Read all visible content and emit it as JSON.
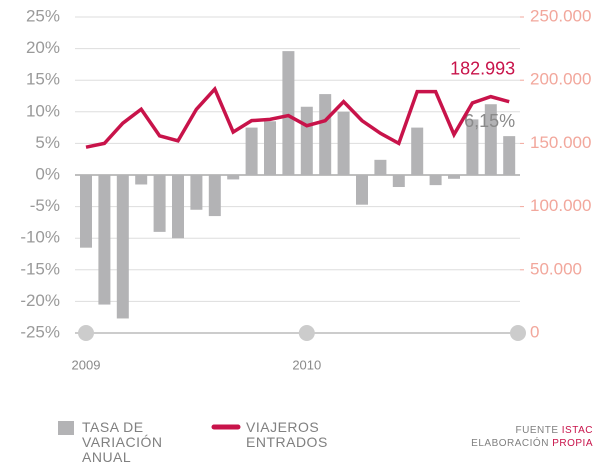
{
  "chart_data": {
    "type": "bar-line",
    "categories": [
      "2009",
      null,
      null,
      null,
      null,
      null,
      null,
      null,
      null,
      null,
      null,
      null,
      "2010",
      null,
      null,
      null,
      null,
      null,
      null,
      null,
      null,
      null,
      null,
      null
    ],
    "series": [
      {
        "name": "TASA DE VARIACIÓN ANUAL",
        "color": "#b3b3b5",
        "type": "bar",
        "axis": "y",
        "values": [
          -11.5,
          -20.5,
          -22.7,
          -1.5,
          -9,
          -10,
          -5.5,
          -6.5,
          -0.7,
          7.5,
          8.5,
          19.6,
          10.8,
          12.8,
          10,
          -4.7,
          2.4,
          -1.9,
          7.5,
          -1.6,
          -0.6,
          8.8,
          11.2,
          6.15
        ],
        "value_labels": [
          null,
          null,
          null,
          null,
          null,
          null,
          null,
          null,
          null,
          null,
          null,
          null,
          null,
          null,
          null,
          null,
          null,
          null,
          null,
          null,
          null,
          null,
          null,
          "6,15%"
        ]
      },
      {
        "name": "VIAJEROS ENTRADOS",
        "color": "#c8134a",
        "type": "line",
        "axis": "y2",
        "values": [
          147000,
          150000,
          166000,
          177000,
          156000,
          152000,
          177000,
          193000,
          159000,
          168000,
          169000,
          172000,
          164000,
          168000,
          183000,
          168000,
          158000,
          150000,
          191000,
          191000,
          157000,
          182000,
          187000,
          182993
        ],
        "value_labels": [
          null,
          null,
          null,
          null,
          null,
          null,
          null,
          null,
          null,
          null,
          null,
          null,
          null,
          null,
          null,
          null,
          null,
          null,
          null,
          null,
          null,
          null,
          null,
          "182.993"
        ]
      }
    ],
    "ylim": [
      -25,
      25
    ],
    "yticks": [
      {
        "value": -25,
        "label": "-25%"
      },
      {
        "value": -20,
        "label": "-20%"
      },
      {
        "value": -15,
        "label": "-15%"
      },
      {
        "value": -10,
        "label": "-10%"
      },
      {
        "value": -5,
        "label": "-5%"
      },
      {
        "value": 0,
        "label": "0%"
      },
      {
        "value": 5,
        "label": "5%"
      },
      {
        "value": 10,
        "label": "10%"
      },
      {
        "value": 15,
        "label": "15%"
      },
      {
        "value": 20,
        "label": "20%"
      },
      {
        "value": 25,
        "label": "25%"
      }
    ],
    "y2lim": [
      0,
      250000
    ],
    "y2ticks": [
      0,
      {
        "value": 50000,
        "label": "50.000"
      },
      {
        "value": 100000,
        "label": "100.000"
      },
      {
        "value": 150000,
        "label": "150.000"
      },
      {
        "value": 200000,
        "label": "200.000"
      },
      {
        "value": 250000,
        "label": "250.000"
      }
    ],
    "grid": true,
    "source": {
      "label1": "FUENTE",
      "value1": "ISTAC",
      "label2": "ELABORACIÓN",
      "value2": "PROPIA"
    }
  }
}
